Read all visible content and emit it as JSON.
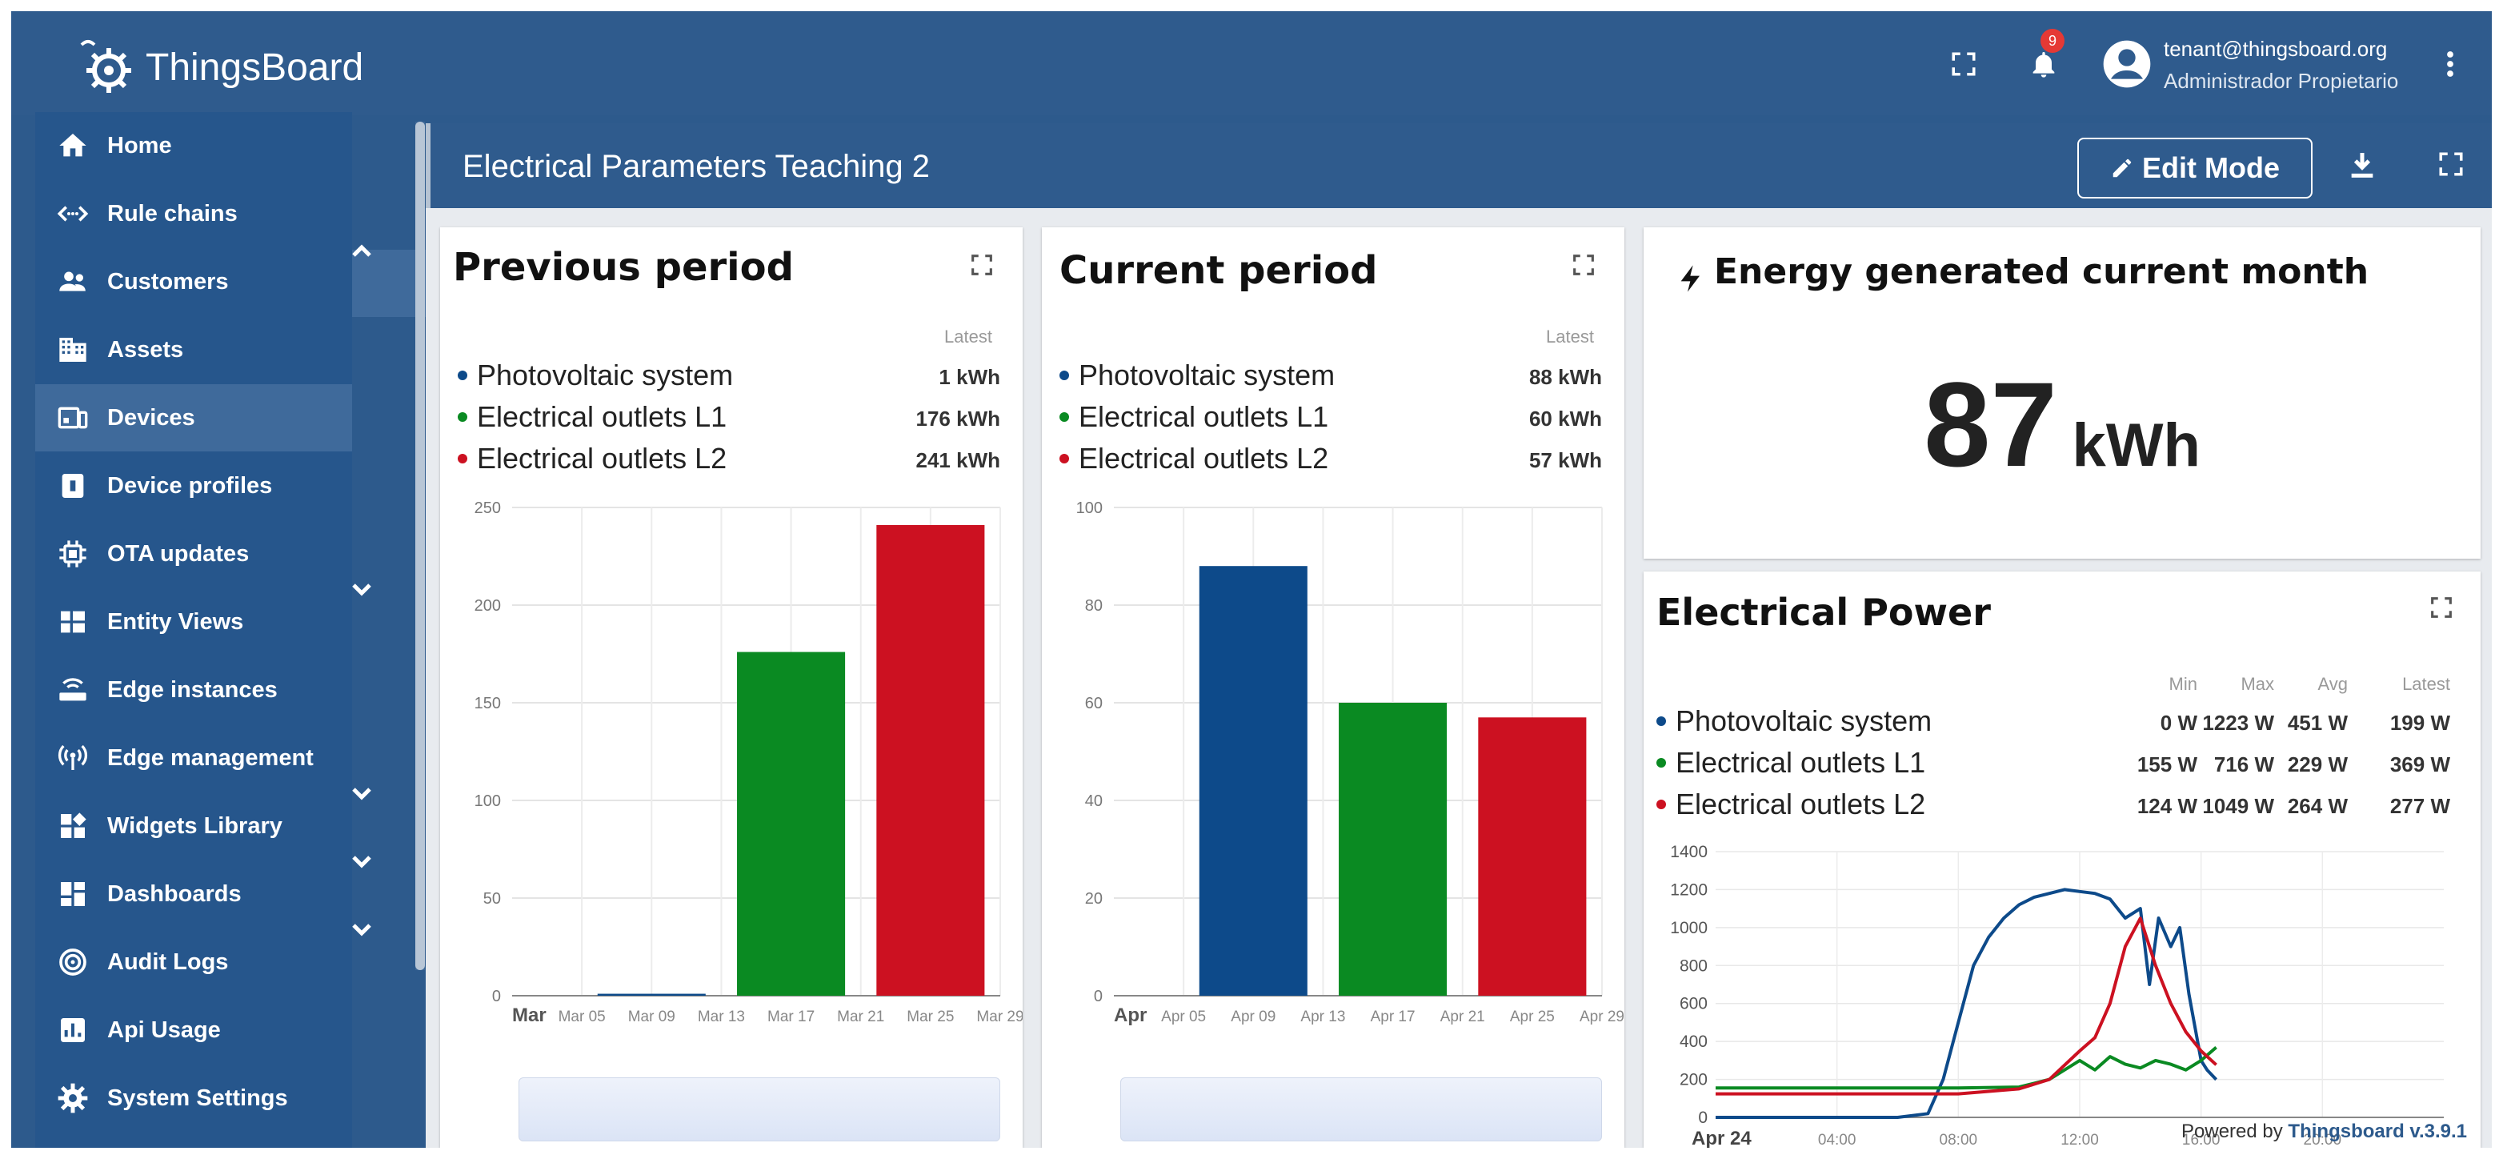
{
  "app": {
    "title": "ThingsBoard"
  },
  "topbar": {
    "notification_count": "9",
    "user_email": "tenant@thingsboard.org",
    "user_role": "Administrador Propietario"
  },
  "sidebar": {
    "items": [
      {
        "label": "Home",
        "icon": "home-icon"
      },
      {
        "label": "Rule chains",
        "icon": "rule-chains-icon"
      },
      {
        "label": "Customers",
        "icon": "customers-icon"
      },
      {
        "label": "Assets",
        "icon": "assets-icon"
      },
      {
        "label": "Devices",
        "icon": "devices-icon"
      },
      {
        "label": "Device profiles",
        "icon": "device-profiles-icon"
      },
      {
        "label": "OTA updates",
        "icon": "ota-icon"
      },
      {
        "label": "Entity Views",
        "icon": "entity-views-icon"
      },
      {
        "label": "Edge instances",
        "icon": "edge-instances-icon"
      },
      {
        "label": "Edge management",
        "icon": "edge-management-icon"
      },
      {
        "label": "Widgets Library",
        "icon": "widgets-icon"
      },
      {
        "label": "Dashboards",
        "icon": "dashboards-icon"
      },
      {
        "label": "Audit Logs",
        "icon": "audit-logs-icon"
      },
      {
        "label": "Api Usage",
        "icon": "api-usage-icon"
      },
      {
        "label": "System Settings",
        "icon": "settings-icon"
      }
    ]
  },
  "dashboard": {
    "title": "Electrical Parameters Teaching 2",
    "edit_mode_label": "Edit Mode"
  },
  "widgets": {
    "previous": {
      "title": "Previous period",
      "latest_label": "Latest",
      "legend": [
        {
          "name": "Photovoltaic system",
          "value": "1 kWh",
          "color": "#0d4a8a"
        },
        {
          "name": "Electrical outlets L1",
          "value": "176 kWh",
          "color": "#0a8a22"
        },
        {
          "name": "Electrical outlets L2",
          "value": "241 kWh",
          "color": "#cc1121"
        }
      ]
    },
    "current": {
      "title": "Current period",
      "latest_label": "Latest",
      "legend": [
        {
          "name": "Photovoltaic system",
          "value": "88 kWh",
          "color": "#0d4a8a"
        },
        {
          "name": "Electrical outlets L1",
          "value": "60 kWh",
          "color": "#0a8a22"
        },
        {
          "name": "Electrical outlets L2",
          "value": "57 kWh",
          "color": "#cc1121"
        }
      ]
    },
    "energy": {
      "title": "Energy generated current month",
      "value": "87",
      "unit": "kWh"
    },
    "power": {
      "title": "Electrical Power",
      "headers": [
        "Min",
        "Max",
        "Avg",
        "Latest"
      ],
      "legend": [
        {
          "name": "Photovoltaic system",
          "min": "0 W",
          "max": "1223 W",
          "avg": "451 W",
          "latest": "199 W",
          "color": "#0d4a8a"
        },
        {
          "name": "Electrical outlets L1",
          "min": "155 W",
          "max": "716 W",
          "avg": "229 W",
          "latest": "369 W",
          "color": "#0a8a22"
        },
        {
          "name": "Electrical outlets L2",
          "min": "124 W",
          "max": "1049 W",
          "avg": "264 W",
          "latest": "277 W",
          "color": "#cc1121"
        }
      ]
    }
  },
  "footer": {
    "prefix": "Powered by",
    "brand": "Thingsboard v.3.9.1"
  },
  "chart_data": [
    {
      "type": "bar",
      "title": "Previous period",
      "x": [
        "Mar 09",
        "Mar 17",
        "Mar 25"
      ],
      "xticks": [
        "Mar",
        "Mar 05",
        "Mar 09",
        "Mar 13",
        "Mar 17",
        "Mar 21",
        "Mar 25",
        "Mar 29"
      ],
      "ylim": [
        0,
        250
      ],
      "yticks": [
        0,
        50,
        100,
        150,
        200,
        250
      ],
      "series": [
        {
          "name": "Photovoltaic system",
          "values": [
            1,
            0,
            0
          ],
          "color": "#0d4a8a"
        },
        {
          "name": "Electrical outlets L1",
          "values": [
            0,
            176,
            0
          ],
          "color": "#0a8a22"
        },
        {
          "name": "Electrical outlets L2",
          "values": [
            0,
            0,
            241
          ],
          "color": "#cc1121"
        }
      ]
    },
    {
      "type": "bar",
      "title": "Current period",
      "x": [
        "Apr 09",
        "Apr 17",
        "Apr 25"
      ],
      "xticks": [
        "Apr",
        "Apr 05",
        "Apr 09",
        "Apr 13",
        "Apr 17",
        "Apr 21",
        "Apr 25",
        "Apr 29"
      ],
      "ylim": [
        0,
        100
      ],
      "yticks": [
        0,
        20,
        40,
        60,
        80,
        100
      ],
      "series": [
        {
          "name": "Photovoltaic system",
          "values": [
            88,
            0,
            0
          ],
          "color": "#0d4a8a"
        },
        {
          "name": "Electrical outlets L1",
          "values": [
            0,
            60,
            0
          ],
          "color": "#0a8a22"
        },
        {
          "name": "Electrical outlets L2",
          "values": [
            0,
            0,
            57
          ],
          "color": "#cc1121"
        }
      ]
    },
    {
      "type": "line",
      "title": "Electrical Power",
      "xticks": [
        "Apr 24",
        "04:00",
        "08:00",
        "12:00",
        "16:00",
        "20:00"
      ],
      "xlim_hours": [
        0,
        24
      ],
      "ylim": [
        0,
        1400
      ],
      "yticks": [
        0,
        200,
        400,
        600,
        800,
        1000,
        1200,
        1400
      ],
      "series": [
        {
          "name": "Photovoltaic system",
          "color": "#0d4a8a",
          "x": [
            0,
            6,
            7,
            7.5,
            8,
            8.5,
            9,
            9.5,
            10,
            10.5,
            11,
            11.5,
            12,
            12.5,
            13,
            13.5,
            14,
            14.3,
            14.6,
            15,
            15.3,
            15.6,
            16,
            16.2,
            16.5
          ],
          "y": [
            0,
            0,
            20,
            200,
            500,
            800,
            950,
            1050,
            1120,
            1160,
            1180,
            1200,
            1190,
            1180,
            1150,
            1050,
            1100,
            700,
            1050,
            900,
            1000,
            650,
            300,
            250,
            199
          ]
        },
        {
          "name": "Electrical outlets L1",
          "color": "#0a8a22",
          "x": [
            0,
            8,
            10,
            11,
            12,
            12.5,
            13,
            13.5,
            14,
            14.5,
            15,
            15.5,
            16,
            16.5
          ],
          "y": [
            155,
            155,
            160,
            200,
            300,
            250,
            320,
            280,
            260,
            300,
            280,
            250,
            300,
            369
          ]
        },
        {
          "name": "Electrical outlets L2",
          "color": "#cc1121",
          "x": [
            0,
            8,
            10,
            11,
            12,
            12.5,
            13,
            13.5,
            14,
            14.5,
            15,
            15.5,
            16,
            16.5
          ],
          "y": [
            124,
            124,
            150,
            200,
            350,
            420,
            600,
            900,
            1049,
            800,
            600,
            450,
            350,
            277
          ]
        }
      ]
    }
  ]
}
